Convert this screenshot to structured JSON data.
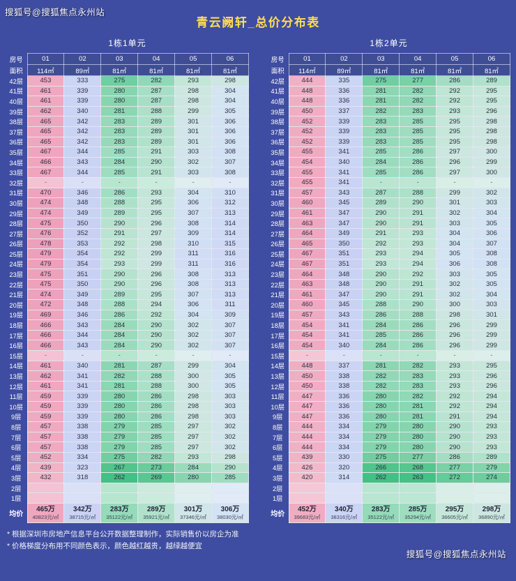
{
  "watermark": "搜狐号@搜狐焦点永州站",
  "title": "青云阙轩_总价分布表",
  "labels": {
    "room": "房号",
    "area": "面积",
    "avg": "均价"
  },
  "notes": [
    "* 根据深圳市房地产信息平台公开数据整理制作，实际销售价以房企为准",
    "* 价格梯度分布用不同颜色表示，颜色越红越贵，越绿越便宜"
  ],
  "colors": {
    "background": "#3e4da1",
    "title": "#ffdd55",
    "header_cell_bg": "#3f4d94",
    "grid_line": "#ffffff",
    "cell_text": "#2c3040",
    "floor_text": "#ffffff",
    "note_text": "#e8ecf8",
    "watermark_text": "#ffffff",
    "scale": [
      [
        255,
        "#2fb878"
      ],
      [
        268,
        "#55c68e"
      ],
      [
        278,
        "#7dd2a8"
      ],
      [
        286,
        "#a3dec3"
      ],
      [
        293,
        "#c2e7d6"
      ],
      [
        299,
        "#cfe7e2"
      ],
      [
        305,
        "#d3e4f3"
      ],
      [
        315,
        "#cfd9f5"
      ],
      [
        365,
        "#c5cef2"
      ],
      [
        415,
        "#f2bfcd"
      ],
      [
        480,
        "#ee9eba"
      ]
    ]
  },
  "chart_data": {
    "type": "table",
    "tables": [
      {
        "subtitle": "1栋1单元",
        "room_numbers": [
          "01",
          "02",
          "03",
          "04",
          "05",
          "06"
        ],
        "areas": [
          "114㎡",
          "89㎡",
          "81㎡",
          "81㎡",
          "81㎡",
          "81㎡"
        ],
        "rows": [
          [
            "42层",
            "453",
            "333",
            "275",
            "282",
            "293",
            "298"
          ],
          [
            "41层",
            "461",
            "339",
            "280",
            "287",
            "298",
            "304"
          ],
          [
            "40层",
            "461",
            "339",
            "280",
            "287",
            "298",
            "304"
          ],
          [
            "39层",
            "462",
            "340",
            "281",
            "288",
            "299",
            "305"
          ],
          [
            "38层",
            "465",
            "342",
            "283",
            "289",
            "301",
            "306"
          ],
          [
            "37层",
            "465",
            "342",
            "283",
            "289",
            "301",
            "306"
          ],
          [
            "36层",
            "465",
            "342",
            "283",
            "289",
            "301",
            "306"
          ],
          [
            "35层",
            "467",
            "344",
            "285",
            "291",
            "303",
            "308"
          ],
          [
            "34层",
            "466",
            "343",
            "284",
            "290",
            "302",
            "307"
          ],
          [
            "33层",
            "467",
            "344",
            "285",
            "291",
            "303",
            "308"
          ],
          [
            "32层",
            "-",
            "-",
            "-",
            "-",
            "-",
            "-"
          ],
          [
            "31层",
            "470",
            "346",
            "286",
            "293",
            "304",
            "310"
          ],
          [
            "30层",
            "474",
            "348",
            "288",
            "295",
            "306",
            "312"
          ],
          [
            "29层",
            "474",
            "349",
            "289",
            "295",
            "307",
            "313"
          ],
          [
            "28层",
            "475",
            "350",
            "290",
            "296",
            "308",
            "314"
          ],
          [
            "27层",
            "476",
            "352",
            "291",
            "297",
            "309",
            "314"
          ],
          [
            "26层",
            "478",
            "353",
            "292",
            "298",
            "310",
            "315"
          ],
          [
            "25层",
            "479",
            "354",
            "292",
            "299",
            "311",
            "316"
          ],
          [
            "24层",
            "479",
            "354",
            "293",
            "299",
            "311",
            "316"
          ],
          [
            "23层",
            "475",
            "351",
            "290",
            "296",
            "308",
            "313"
          ],
          [
            "22层",
            "475",
            "350",
            "290",
            "296",
            "308",
            "313"
          ],
          [
            "21层",
            "474",
            "349",
            "289",
            "295",
            "307",
            "313"
          ],
          [
            "20层",
            "472",
            "348",
            "288",
            "294",
            "306",
            "311"
          ],
          [
            "19层",
            "469",
            "346",
            "286",
            "292",
            "304",
            "309"
          ],
          [
            "18层",
            "466",
            "343",
            "284",
            "290",
            "302",
            "307"
          ],
          [
            "17层",
            "466",
            "344",
            "284",
            "290",
            "302",
            "307"
          ],
          [
            "16层",
            "466",
            "343",
            "284",
            "290",
            "302",
            "307"
          ],
          [
            "15层",
            "-",
            "-",
            "-",
            "-",
            "-",
            "-"
          ],
          [
            "14层",
            "461",
            "340",
            "281",
            "287",
            "299",
            "304"
          ],
          [
            "13层",
            "462",
            "341",
            "282",
            "288",
            "300",
            "305"
          ],
          [
            "12层",
            "461",
            "341",
            "281",
            "288",
            "300",
            "305"
          ],
          [
            "11层",
            "459",
            "339",
            "280",
            "286",
            "298",
            "303"
          ],
          [
            "10层",
            "459",
            "339",
            "280",
            "286",
            "298",
            "303"
          ],
          [
            "9层",
            "459",
            "339",
            "280",
            "286",
            "298",
            "303"
          ],
          [
            "8层",
            "457",
            "338",
            "279",
            "285",
            "297",
            "302"
          ],
          [
            "7层",
            "457",
            "338",
            "279",
            "285",
            "297",
            "302"
          ],
          [
            "6层",
            "457",
            "338",
            "279",
            "285",
            "297",
            "302"
          ],
          [
            "5层",
            "452",
            "334",
            "275",
            "282",
            "293",
            "298"
          ],
          [
            "4层",
            "439",
            "323",
            "267",
            "273",
            "284",
            "290"
          ],
          [
            "3层",
            "432",
            "318",
            "262",
            "269",
            "280",
            "285"
          ],
          [
            "2层",
            "",
            "",
            "",
            "",
            "",
            ""
          ],
          [
            "1层",
            "",
            "",
            "",
            "",
            "",
            ""
          ]
        ],
        "avg_prices": [
          "465万",
          "342万",
          "283万",
          "289万",
          "301万",
          "306万"
        ],
        "avg_units": [
          "40823元/㎡",
          "38715元/㎡",
          "35122元/㎡",
          "35921元/㎡",
          "37346元/㎡",
          "38030元/㎡"
        ]
      },
      {
        "subtitle": "1栋2单元",
        "room_numbers": [
          "01",
          "02",
          "03",
          "04",
          "05",
          "06"
        ],
        "areas": [
          "114㎡",
          "89㎡",
          "81㎡",
          "81㎡",
          "81㎡",
          "81㎡"
        ],
        "rows": [
          [
            "42层",
            "444",
            "335",
            "275",
            "277",
            "286",
            "289"
          ],
          [
            "41层",
            "448",
            "336",
            "281",
            "282",
            "292",
            "295"
          ],
          [
            "40层",
            "448",
            "336",
            "281",
            "282",
            "292",
            "295"
          ],
          [
            "39层",
            "450",
            "337",
            "282",
            "283",
            "293",
            "296"
          ],
          [
            "38层",
            "452",
            "339",
            "283",
            "285",
            "295",
            "298"
          ],
          [
            "37层",
            "452",
            "339",
            "283",
            "285",
            "295",
            "298"
          ],
          [
            "36层",
            "452",
            "339",
            "283",
            "285",
            "295",
            "298"
          ],
          [
            "35层",
            "455",
            "341",
            "285",
            "286",
            "297",
            "300"
          ],
          [
            "34层",
            "454",
            "340",
            "284",
            "286",
            "296",
            "299"
          ],
          [
            "33层",
            "455",
            "341",
            "285",
            "286",
            "297",
            "300"
          ],
          [
            "32层",
            "455",
            "341",
            "-",
            "-",
            "-",
            "-"
          ],
          [
            "31层",
            "457",
            "343",
            "287",
            "288",
            "299",
            "302"
          ],
          [
            "30层",
            "460",
            "345",
            "289",
            "290",
            "301",
            "303"
          ],
          [
            "29层",
            "461",
            "347",
            "290",
            "291",
            "302",
            "304"
          ],
          [
            "28层",
            "463",
            "347",
            "290",
            "291",
            "303",
            "305"
          ],
          [
            "27层",
            "464",
            "349",
            "291",
            "293",
            "304",
            "306"
          ],
          [
            "26层",
            "465",
            "350",
            "292",
            "293",
            "304",
            "307"
          ],
          [
            "25层",
            "467",
            "351",
            "293",
            "294",
            "305",
            "308"
          ],
          [
            "24层",
            "467",
            "351",
            "293",
            "294",
            "306",
            "308"
          ],
          [
            "23层",
            "464",
            "348",
            "290",
            "292",
            "303",
            "305"
          ],
          [
            "22层",
            "463",
            "348",
            "290",
            "291",
            "302",
            "305"
          ],
          [
            "21层",
            "461",
            "347",
            "290",
            "291",
            "302",
            "304"
          ],
          [
            "20层",
            "460",
            "345",
            "288",
            "290",
            "300",
            "303"
          ],
          [
            "19层",
            "457",
            "343",
            "286",
            "288",
            "298",
            "301"
          ],
          [
            "18层",
            "454",
            "341",
            "284",
            "286",
            "296",
            "299"
          ],
          [
            "17层",
            "454",
            "341",
            "285",
            "286",
            "296",
            "299"
          ],
          [
            "16层",
            "454",
            "340",
            "284",
            "286",
            "296",
            "299"
          ],
          [
            "15层",
            "-",
            "-",
            "-",
            "-",
            "-",
            "-"
          ],
          [
            "14层",
            "448",
            "337",
            "281",
            "282",
            "293",
            "295"
          ],
          [
            "13层",
            "450",
            "338",
            "282",
            "283",
            "293",
            "296"
          ],
          [
            "12层",
            "450",
            "338",
            "282",
            "283",
            "293",
            "296"
          ],
          [
            "11层",
            "447",
            "336",
            "280",
            "282",
            "292",
            "294"
          ],
          [
            "10层",
            "447",
            "336",
            "280",
            "281",
            "292",
            "294"
          ],
          [
            "9层",
            "447",
            "336",
            "280",
            "281",
            "291",
            "294"
          ],
          [
            "8层",
            "444",
            "334",
            "279",
            "280",
            "290",
            "293"
          ],
          [
            "7层",
            "444",
            "334",
            "279",
            "280",
            "290",
            "293"
          ],
          [
            "6层",
            "444",
            "334",
            "279",
            "280",
            "290",
            "293"
          ],
          [
            "5层",
            "439",
            "330",
            "275",
            "277",
            "286",
            "289"
          ],
          [
            "4层",
            "426",
            "320",
            "266",
            "268",
            "277",
            "279"
          ],
          [
            "3层",
            "420",
            "314",
            "262",
            "263",
            "272",
            "274"
          ],
          [
            "2层",
            "",
            "",
            "",
            "",
            "",
            ""
          ],
          [
            "1层",
            "",
            "",
            "",
            "",
            "",
            ""
          ]
        ],
        "avg_prices": [
          "452万",
          "340万",
          "283万",
          "285万",
          "295万",
          "298万"
        ],
        "avg_units": [
          "39683元/㎡",
          "38316元/㎡",
          "35122元/㎡",
          "35294元/㎡",
          "36605元/㎡",
          "36890元/㎡"
        ]
      }
    ]
  }
}
